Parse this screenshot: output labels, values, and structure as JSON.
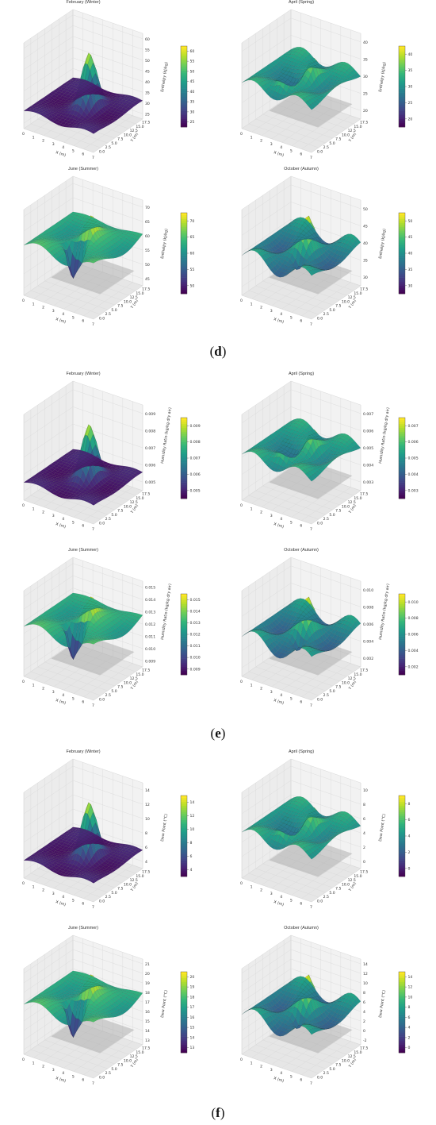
{
  "figure_labels": [
    {
      "open": "(",
      "letter": "d",
      "close": ")"
    },
    {
      "open": "(",
      "letter": "e",
      "close": ")"
    },
    {
      "open": "(",
      "letter": "f",
      "close": ")"
    }
  ],
  "colors": {
    "viridis": [
      "#440154",
      "#482878",
      "#3e4989",
      "#31688e",
      "#26828e",
      "#1f9e89",
      "#35b779",
      "#6ece58",
      "#b5de2b",
      "#fde725"
    ],
    "pane": "#ececec",
    "grid": "#d8d8d8",
    "shadow": "#a9a9a9"
  },
  "chart_data": [
    {
      "type": "surface",
      "group": "d",
      "title": "February (Winter)",
      "xlabel": "X (m)",
      "ylabel": "Y (m)",
      "zlabel": "Enthalpy (kJ/kg)",
      "x_ticks": [
        "0",
        "1",
        "2",
        "3",
        "4",
        "5",
        "6",
        "7"
      ],
      "y_ticks": [
        "0.0",
        "2.5",
        "5.0",
        "7.5",
        "10.0",
        "12.5",
        "15.0",
        "17.5"
      ],
      "z_ticks": [
        "25",
        "30",
        "35",
        "40",
        "45",
        "50",
        "55",
        "60"
      ],
      "colorbar_ticks": [
        "25",
        "30",
        "35",
        "40",
        "45",
        "50",
        "55",
        "60"
      ],
      "zlim": [
        22,
        62
      ]
    },
    {
      "type": "surface",
      "group": "d",
      "title": "April (Spring)",
      "xlabel": "X (m)",
      "ylabel": "Y (m)",
      "zlabel": "Enthalpy (kJ/kg)",
      "x_ticks": [
        "0",
        "1",
        "2",
        "3",
        "4",
        "5",
        "6",
        "7"
      ],
      "y_ticks": [
        "0.0",
        "2.5",
        "5.0",
        "7.5",
        "10.0",
        "12.5",
        "15.0",
        "17.5"
      ],
      "z_ticks": [
        "20",
        "25",
        "30",
        "35",
        "40"
      ],
      "colorbar_ticks": [
        "20",
        "25",
        "30",
        "35",
        "40"
      ],
      "zlim": [
        19,
        42
      ]
    },
    {
      "type": "surface",
      "group": "d",
      "title": "June (Summer)",
      "xlabel": "X (m)",
      "ylabel": "Y (m)",
      "zlabel": "Enthalpy (kJ/kg)",
      "x_ticks": [
        "0",
        "1",
        "2",
        "3",
        "4",
        "5",
        "6",
        "7"
      ],
      "y_ticks": [
        "0.0",
        "2.5",
        "5.0",
        "7.5",
        "10.0",
        "12.5",
        "15.0",
        "17.5"
      ],
      "z_ticks": [
        "45",
        "50",
        "55",
        "60",
        "65",
        "70"
      ],
      "colorbar_ticks": [
        "50",
        "55",
        "60",
        "65",
        "70"
      ],
      "zlim": [
        45,
        71
      ]
    },
    {
      "type": "surface",
      "group": "d",
      "title": "October (Autumn)",
      "xlabel": "X (m)",
      "ylabel": "Y (m)",
      "zlabel": "Enthalpy (kJ/kg)",
      "x_ticks": [
        "0",
        "1",
        "2",
        "3",
        "4",
        "5",
        "6",
        "7"
      ],
      "y_ticks": [
        "0.0",
        "2.5",
        "5.0",
        "7.5",
        "10.0",
        "12.5",
        "15.0",
        "17.5"
      ],
      "z_ticks": [
        "30",
        "35",
        "40",
        "45",
        "50"
      ],
      "colorbar_ticks": [
        "30",
        "35",
        "40",
        "45",
        "50"
      ],
      "zlim": [
        28,
        53
      ]
    },
    {
      "type": "surface",
      "group": "e",
      "title": "February (Winter)",
      "xlabel": "X (m)",
      "ylabel": "Y (m)",
      "zlabel": "Humidity Ratio (kg/kg dry air)",
      "x_ticks": [
        "0",
        "1",
        "2",
        "3",
        "4",
        "5",
        "6",
        "7"
      ],
      "y_ticks": [
        "0.0",
        "2.5",
        "5.0",
        "7.5",
        "10.0",
        "12.5",
        "15.0",
        "17.5"
      ],
      "z_ticks": [
        "0.005",
        "0.006",
        "0.007",
        "0.008",
        "0.009"
      ],
      "colorbar_ticks": [
        "0.005",
        "0.006",
        "0.007",
        "0.008",
        "0.009"
      ],
      "zlim": [
        0.0048,
        0.0098
      ]
    },
    {
      "type": "surface",
      "group": "e",
      "title": "April (Spring)",
      "xlabel": "X (m)",
      "ylabel": "Y (m)",
      "zlabel": "Humidity Ratio (kg/kg dry air)",
      "x_ticks": [
        "0",
        "1",
        "2",
        "3",
        "4",
        "5",
        "6",
        "7"
      ],
      "y_ticks": [
        "0.0",
        "2.5",
        "5.0",
        "7.5",
        "10.0",
        "12.5",
        "15.0",
        "17.5"
      ],
      "z_ticks": [
        "0.003",
        "0.004",
        "0.005",
        "0.006",
        "0.007"
      ],
      "colorbar_ticks": [
        "0.003",
        "0.004",
        "0.005",
        "0.006",
        "0.007"
      ],
      "zlim": [
        0.0028,
        0.0075
      ]
    },
    {
      "type": "surface",
      "group": "e",
      "title": "June (Summer)",
      "xlabel": "X (m)",
      "ylabel": "Y (m)",
      "zlabel": "Humidity Ratio (kg/kg dry air)",
      "x_ticks": [
        "0",
        "1",
        "2",
        "3",
        "4",
        "5",
        "6",
        "7"
      ],
      "y_ticks": [
        "0.0",
        "2.5",
        "5.0",
        "7.5",
        "10.0",
        "12.5",
        "15.0",
        "17.5"
      ],
      "z_ticks": [
        "0.009",
        "0.010",
        "0.011",
        "0.012",
        "0.013",
        "0.014",
        "0.015"
      ],
      "colorbar_ticks": [
        "0.009",
        "0.010",
        "0.011",
        "0.012",
        "0.013",
        "0.014",
        "0.015"
      ],
      "zlim": [
        0.0085,
        0.0157
      ]
    },
    {
      "type": "surface",
      "group": "e",
      "title": "October (Autumn)",
      "xlabel": "X (m)",
      "ylabel": "Y (m)",
      "zlabel": "Humidity Ratio (kg/kg dry air)",
      "x_ticks": [
        "0",
        "1",
        "2",
        "3",
        "4",
        "5",
        "6",
        "7"
      ],
      "y_ticks": [
        "0.0",
        "2.5",
        "5.0",
        "7.5",
        "10.0",
        "12.5",
        "15.0",
        "17.5"
      ],
      "z_ticks": [
        "0.002",
        "0.004",
        "0.006",
        "0.008",
        "0.010"
      ],
      "colorbar_ticks": [
        "0.002",
        "0.004",
        "0.006",
        "0.008",
        "0.010"
      ],
      "zlim": [
        0.0015,
        0.0105
      ]
    },
    {
      "type": "surface",
      "group": "f",
      "title": "February (Winter)",
      "xlabel": "X (m)",
      "ylabel": "Y (m)",
      "zlabel": "Dew Point (°C)",
      "x_ticks": [
        "0",
        "1",
        "2",
        "3",
        "4",
        "5",
        "6",
        "7"
      ],
      "y_ticks": [
        "0.0",
        "2.5",
        "5.0",
        "7.5",
        "10.0",
        "12.5",
        "15.0",
        "17.5"
      ],
      "z_ticks": [
        "4",
        "6",
        "8",
        "10",
        "12",
        "14"
      ],
      "colorbar_ticks": [
        "4",
        "6",
        "8",
        "10",
        "12",
        "14"
      ],
      "zlim": [
        3.5,
        14.5
      ]
    },
    {
      "type": "surface",
      "group": "f",
      "title": "April (Spring)",
      "xlabel": "X (m)",
      "ylabel": "Y (m)",
      "zlabel": "Dew Point (°C)",
      "x_ticks": [
        "0",
        "1",
        "2",
        "3",
        "4",
        "5",
        "6",
        "7"
      ],
      "y_ticks": [
        "0.0",
        "2.5",
        "5.0",
        "7.5",
        "10.0",
        "12.5",
        "15.0",
        "17.5"
      ],
      "z_ticks": [
        "0",
        "2",
        "4",
        "6",
        "8",
        "10"
      ],
      "colorbar_ticks": [
        "0",
        "2",
        "4",
        "6",
        "8"
      ],
      "zlim": [
        -1.5,
        10
      ]
    },
    {
      "type": "surface",
      "group": "f",
      "title": "June (Summer)",
      "xlabel": "X (m)",
      "ylabel": "Y (m)",
      "zlabel": "Dew Point (°C)",
      "x_ticks": [
        "0",
        "1",
        "2",
        "3",
        "4",
        "5",
        "6",
        "7"
      ],
      "y_ticks": [
        "0.0",
        "2.5",
        "5.0",
        "7.5",
        "10.0",
        "12.5",
        "15.0",
        "17.5"
      ],
      "z_ticks": [
        "13",
        "14",
        "15",
        "16",
        "17",
        "18",
        "19",
        "20",
        "21"
      ],
      "colorbar_ticks": [
        "13",
        "14",
        "15",
        "16",
        "17",
        "18",
        "19",
        "20"
      ],
      "zlim": [
        12.5,
        21
      ]
    },
    {
      "type": "surface",
      "group": "f",
      "title": "October (Autumn)",
      "xlabel": "X (m)",
      "ylabel": "Y (m)",
      "zlabel": "Dew Point (°C)",
      "x_ticks": [
        "0",
        "1",
        "2",
        "3",
        "4",
        "5",
        "6",
        "7"
      ],
      "y_ticks": [
        "0.0",
        "2.5",
        "5.0",
        "7.5",
        "10.0",
        "12.5",
        "15.0",
        "17.5"
      ],
      "z_ticks": [
        "-2",
        "0",
        "2",
        "4",
        "6",
        "8",
        "10",
        "12",
        "14"
      ],
      "colorbar_ticks": [
        "0",
        "2",
        "4",
        "6",
        "8",
        "10",
        "12",
        "14"
      ],
      "zlim": [
        -2.5,
        15
      ]
    }
  ]
}
